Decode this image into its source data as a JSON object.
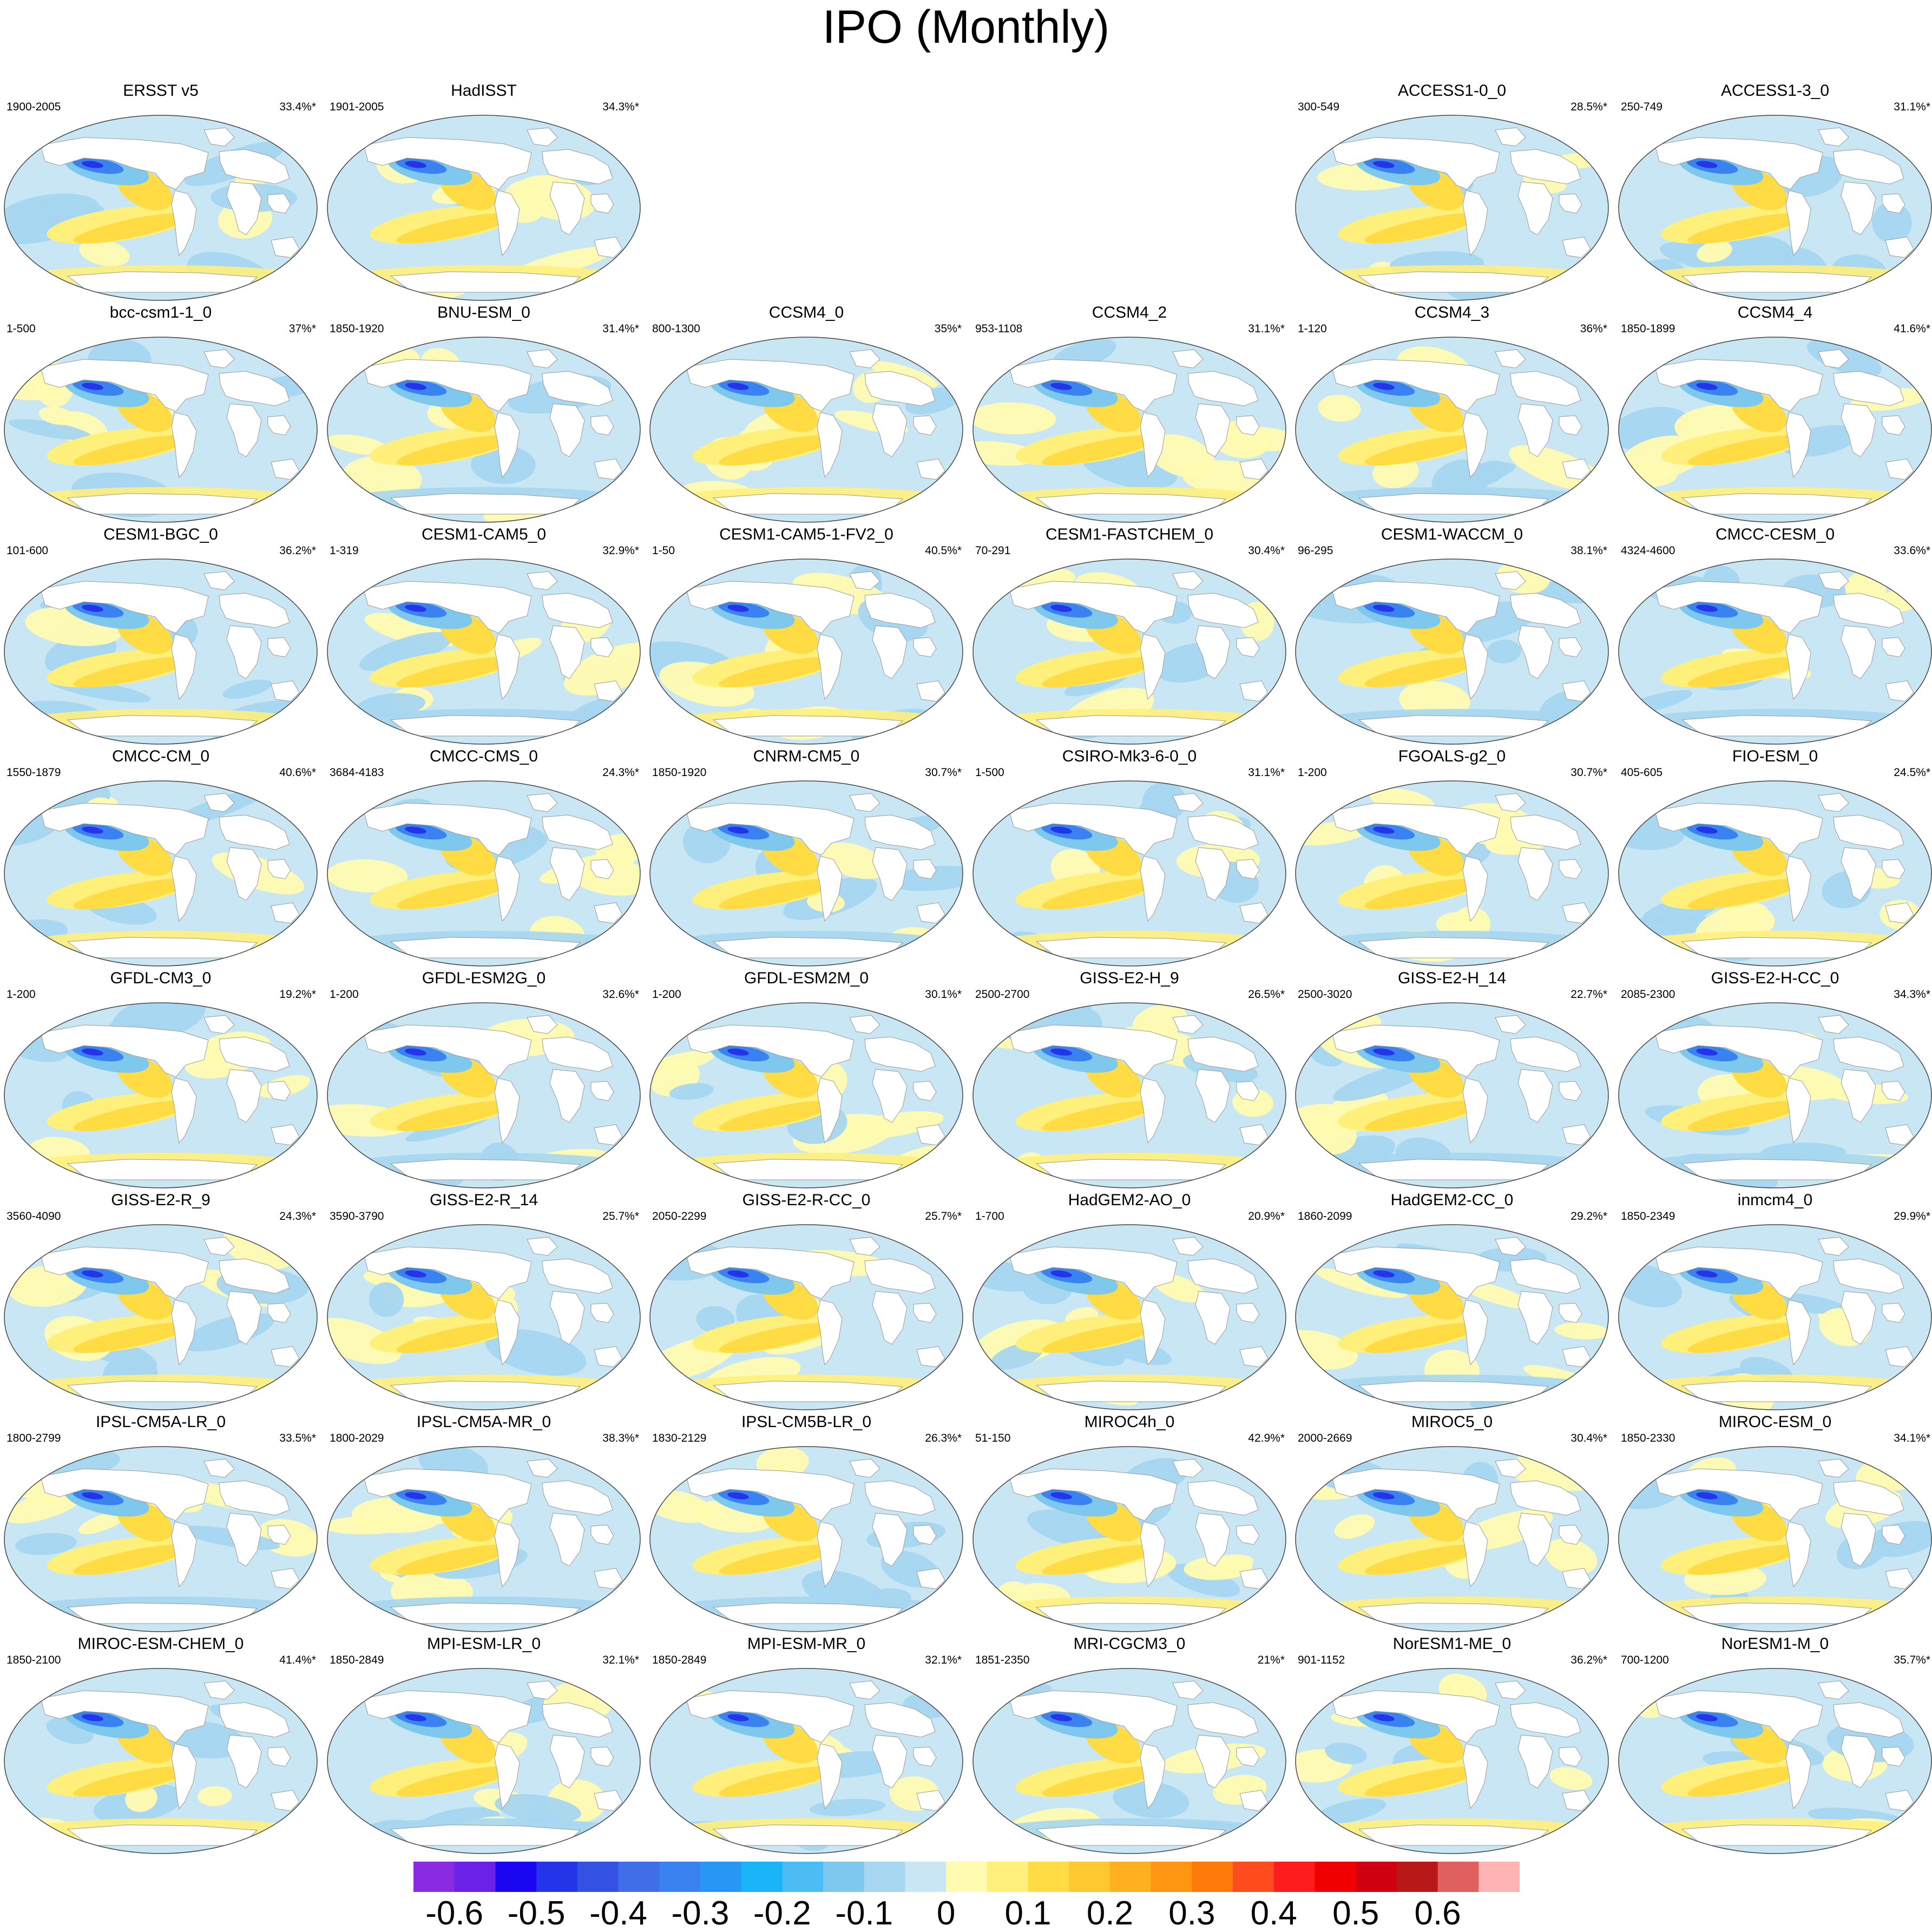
{
  "title": "IPO (Monthly)",
  "colorbar": {
    "labels": [
      "-0.6",
      "-0.5",
      "-0.4",
      "-0.3",
      "-0.2",
      "-0.1",
      "0",
      "0.1",
      "0.2",
      "0.3",
      "0.4",
      "0.5",
      "0.6"
    ],
    "colors": [
      "#8a2be2",
      "#6a22e8",
      "#1a06f0",
      "#2434e8",
      "#3352e4",
      "#3f6ee8",
      "#3a82f0",
      "#2896f4",
      "#1ab4f8",
      "#4cbcf4",
      "#7ec8ee",
      "#a6d6f0",
      "#c8e6f4",
      "#fffbb0",
      "#fff07c",
      "#ffdc44",
      "#ffc830",
      "#ffb020",
      "#ff9612",
      "#ff7a08",
      "#ff4c1e",
      "#ff1c1c",
      "#f00000",
      "#d00010",
      "#b81818",
      "#e06060",
      "#ffb4b4"
    ]
  },
  "panels": [
    {
      "row": 0,
      "col": 0,
      "name": "ERSST v5",
      "period": "1900-2005",
      "variance": "33.4%*"
    },
    {
      "row": 0,
      "col": 1,
      "name": "HadISST",
      "period": "1901-2005",
      "variance": "34.3%*"
    },
    {
      "row": 0,
      "col": 4,
      "name": "ACCESS1-0_0",
      "period": "300-549",
      "variance": "28.5%*"
    },
    {
      "row": 0,
      "col": 5,
      "name": "ACCESS1-3_0",
      "period": "250-749",
      "variance": "31.1%*"
    },
    {
      "row": 1,
      "col": 0,
      "name": "bcc-csm1-1_0",
      "period": "1-500",
      "variance": "37%*"
    },
    {
      "row": 1,
      "col": 1,
      "name": "BNU-ESM_0",
      "period": "1850-1920",
      "variance": "31.4%*"
    },
    {
      "row": 1,
      "col": 2,
      "name": "CCSM4_0",
      "period": "800-1300",
      "variance": "35%*"
    },
    {
      "row": 1,
      "col": 3,
      "name": "CCSM4_2",
      "period": "953-1108",
      "variance": "31.1%*"
    },
    {
      "row": 1,
      "col": 4,
      "name": "CCSM4_3",
      "period": "1-120",
      "variance": "36%*"
    },
    {
      "row": 1,
      "col": 5,
      "name": "CCSM4_4",
      "period": "1850-1899",
      "variance": "41.6%*"
    },
    {
      "row": 2,
      "col": 0,
      "name": "CESM1-BGC_0",
      "period": "101-600",
      "variance": "36.2%*"
    },
    {
      "row": 2,
      "col": 1,
      "name": "CESM1-CAM5_0",
      "period": "1-319",
      "variance": "32.9%*"
    },
    {
      "row": 2,
      "col": 2,
      "name": "CESM1-CAM5-1-FV2_0",
      "period": "1-50",
      "variance": "40.5%*"
    },
    {
      "row": 2,
      "col": 3,
      "name": "CESM1-FASTCHEM_0",
      "period": "70-291",
      "variance": "30.4%*"
    },
    {
      "row": 2,
      "col": 4,
      "name": "CESM1-WACCM_0",
      "period": "96-295",
      "variance": "38.1%*"
    },
    {
      "row": 2,
      "col": 5,
      "name": "CMCC-CESM_0",
      "period": "4324-4600",
      "variance": "33.6%*"
    },
    {
      "row": 3,
      "col": 0,
      "name": "CMCC-CM_0",
      "period": "1550-1879",
      "variance": "40.6%*"
    },
    {
      "row": 3,
      "col": 1,
      "name": "CMCC-CMS_0",
      "period": "3684-4183",
      "variance": "24.3%*"
    },
    {
      "row": 3,
      "col": 2,
      "name": "CNRM-CM5_0",
      "period": "1850-1920",
      "variance": "30.7%*"
    },
    {
      "row": 3,
      "col": 3,
      "name": "CSIRO-Mk3-6-0_0",
      "period": "1-500",
      "variance": "31.1%*"
    },
    {
      "row": 3,
      "col": 4,
      "name": "FGOALS-g2_0",
      "period": "1-200",
      "variance": "30.7%*"
    },
    {
      "row": 3,
      "col": 5,
      "name": "FIO-ESM_0",
      "period": "405-605",
      "variance": "24.5%*"
    },
    {
      "row": 4,
      "col": 0,
      "name": "GFDL-CM3_0",
      "period": "1-200",
      "variance": "19.2%*"
    },
    {
      "row": 4,
      "col": 1,
      "name": "GFDL-ESM2G_0",
      "period": "1-200",
      "variance": "32.6%*"
    },
    {
      "row": 4,
      "col": 2,
      "name": "GFDL-ESM2M_0",
      "period": "1-200",
      "variance": "30.1%*"
    },
    {
      "row": 4,
      "col": 3,
      "name": "GISS-E2-H_9",
      "period": "2500-2700",
      "variance": "26.5%*"
    },
    {
      "row": 4,
      "col": 4,
      "name": "GISS-E2-H_14",
      "period": "2500-3020",
      "variance": "22.7%*"
    },
    {
      "row": 4,
      "col": 5,
      "name": "GISS-E2-H-CC_0",
      "period": "2085-2300",
      "variance": "34.3%*"
    },
    {
      "row": 5,
      "col": 0,
      "name": "GISS-E2-R_9",
      "period": "3560-4090",
      "variance": "24.3%*"
    },
    {
      "row": 5,
      "col": 1,
      "name": "GISS-E2-R_14",
      "period": "3590-3790",
      "variance": "25.7%*"
    },
    {
      "row": 5,
      "col": 2,
      "name": "GISS-E2-R-CC_0",
      "period": "2050-2299",
      "variance": "25.7%*"
    },
    {
      "row": 5,
      "col": 3,
      "name": "HadGEM2-AO_0",
      "period": "1-700",
      "variance": "20.9%*"
    },
    {
      "row": 5,
      "col": 4,
      "name": "HadGEM2-CC_0",
      "period": "1860-2099",
      "variance": "29.2%*"
    },
    {
      "row": 5,
      "col": 5,
      "name": "inmcm4_0",
      "period": "1850-2349",
      "variance": "29.9%*"
    },
    {
      "row": 6,
      "col": 0,
      "name": "IPSL-CM5A-LR_0",
      "period": "1800-2799",
      "variance": "33.5%*"
    },
    {
      "row": 6,
      "col": 1,
      "name": "IPSL-CM5A-MR_0",
      "period": "1800-2029",
      "variance": "38.3%*"
    },
    {
      "row": 6,
      "col": 2,
      "name": "IPSL-CM5B-LR_0",
      "period": "1830-2129",
      "variance": "26.3%*"
    },
    {
      "row": 6,
      "col": 3,
      "name": "MIROC4h_0",
      "period": "51-150",
      "variance": "42.9%*"
    },
    {
      "row": 6,
      "col": 4,
      "name": "MIROC5_0",
      "period": "2000-2669",
      "variance": "30.4%*"
    },
    {
      "row": 6,
      "col": 5,
      "name": "MIROC-ESM_0",
      "period": "1850-2330",
      "variance": "34.1%*"
    },
    {
      "row": 7,
      "col": 0,
      "name": "MIROC-ESM-CHEM_0",
      "period": "1850-2100",
      "variance": "41.4%*"
    },
    {
      "row": 7,
      "col": 1,
      "name": "MPI-ESM-LR_0",
      "period": "1850-2849",
      "variance": "32.1%*"
    },
    {
      "row": 7,
      "col": 2,
      "name": "MPI-ESM-MR_0",
      "period": "1850-2849",
      "variance": "32.1%*"
    },
    {
      "row": 7,
      "col": 3,
      "name": "MRI-CGCM3_0",
      "period": "1851-2350",
      "variance": "21%*"
    },
    {
      "row": 7,
      "col": 4,
      "name": "NorESM1-ME_0",
      "period": "901-1152",
      "variance": "36.2%*"
    },
    {
      "row": 7,
      "col": 5,
      "name": "NorESM1-M_0",
      "period": "700-1200",
      "variance": "35.7%*"
    }
  ]
}
